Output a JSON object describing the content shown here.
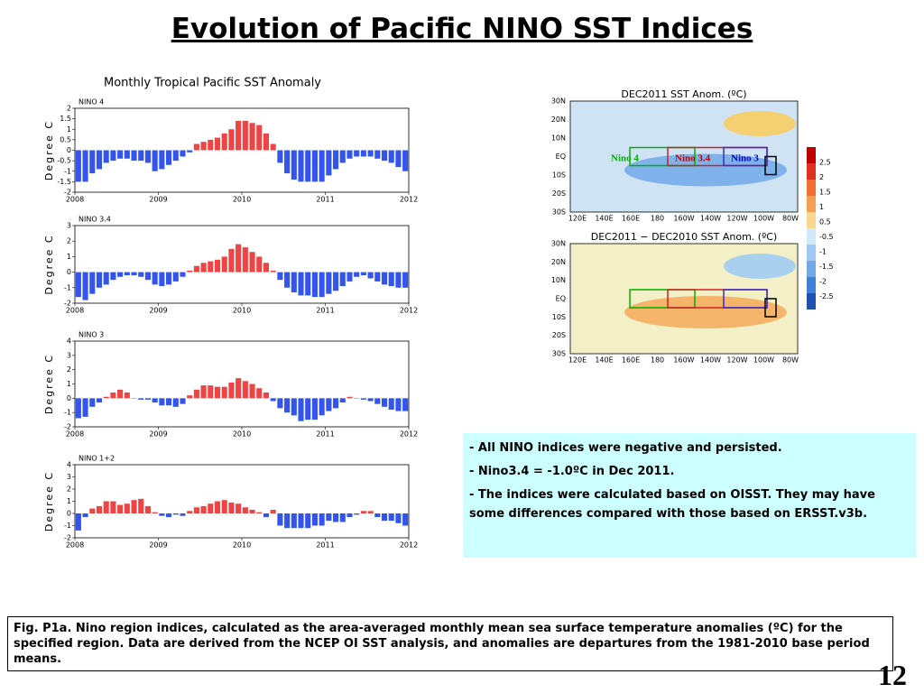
{
  "title": "Evolution of Pacific NINO SST Indices",
  "panel_title": "Monthly Tropical Pacific SST Anomaly",
  "chart_data": [
    {
      "type": "bar",
      "title": "NINO 4",
      "ylabel": "Degree C",
      "color_positive": "#ee4444",
      "color_negative": "#3355ee",
      "categories": [
        null,
        null,
        null,
        null,
        null,
        null,
        null,
        null,
        null,
        null,
        null,
        null,
        null,
        null,
        null,
        null,
        null,
        null,
        null,
        null,
        null,
        null,
        null,
        null,
        null,
        null,
        null,
        null,
        null,
        null,
        null,
        null,
        null,
        null,
        null,
        null,
        null,
        null,
        null,
        null,
        null,
        null,
        null,
        null,
        null,
        null,
        null,
        null
      ],
      "values": [
        -1.5,
        -1.5,
        -1.1,
        -0.9,
        -0.6,
        -0.5,
        -0.4,
        -0.4,
        -0.5,
        -0.5,
        -0.6,
        -1.0,
        -0.9,
        -0.7,
        -0.5,
        -0.3,
        -0.1,
        0.3,
        0.4,
        0.5,
        0.6,
        0.8,
        1.0,
        1.4,
        1.4,
        1.3,
        1.2,
        0.8,
        0.3,
        -0.6,
        -1.1,
        -1.4,
        -1.5,
        -1.5,
        -1.5,
        -1.5,
        -1.2,
        -0.9,
        -0.6,
        -0.4,
        -0.3,
        -0.3,
        -0.3,
        -0.4,
        -0.5,
        -0.6,
        -0.8,
        -1.0
      ],
      "xlim": [
        2008,
        2012
      ],
      "xticks": [
        2008,
        2009,
        2010,
        2011,
        2012
      ],
      "ylim": [
        -2,
        2
      ],
      "yticks": [
        -2,
        -1.5,
        -1,
        -0.5,
        0,
        0.5,
        1,
        1.5,
        2
      ]
    },
    {
      "type": "bar",
      "title": "NINO 3.4",
      "ylabel": "Degree C",
      "color_positive": "#ee4444",
      "color_negative": "#3355ee",
      "categories": [
        null,
        null,
        null,
        null,
        null,
        null,
        null,
        null,
        null,
        null,
        null,
        null,
        null,
        null,
        null,
        null,
        null,
        null,
        null,
        null,
        null,
        null,
        null,
        null,
        null,
        null,
        null,
        null,
        null,
        null,
        null,
        null,
        null,
        null,
        null,
        null,
        null,
        null,
        null,
        null,
        null,
        null,
        null,
        null,
        null,
        null,
        null,
        null
      ],
      "values": [
        -1.6,
        -1.8,
        -1.4,
        -1.0,
        -0.8,
        -0.5,
        -0.3,
        -0.2,
        -0.2,
        -0.3,
        -0.5,
        -0.8,
        -0.9,
        -0.8,
        -0.6,
        -0.3,
        0.1,
        0.4,
        0.6,
        0.7,
        0.8,
        1.0,
        1.5,
        1.8,
        1.6,
        1.3,
        1.0,
        0.6,
        0.1,
        -0.5,
        -1.0,
        -1.3,
        -1.5,
        -1.5,
        -1.6,
        -1.6,
        -1.4,
        -1.2,
        -0.9,
        -0.6,
        -0.3,
        -0.2,
        -0.4,
        -0.6,
        -0.8,
        -0.9,
        -1.0,
        -1.0
      ],
      "xlim": [
        2008,
        2012
      ],
      "xticks": [
        2008,
        2009,
        2010,
        2011,
        2012
      ],
      "ylim": [
        -2,
        3
      ],
      "yticks": [
        -2,
        -1,
        0,
        1,
        2,
        3
      ]
    },
    {
      "type": "bar",
      "title": "NINO 3",
      "ylabel": "Degree C",
      "color_positive": "#ee4444",
      "color_negative": "#3355ee",
      "categories": [
        null,
        null,
        null,
        null,
        null,
        null,
        null,
        null,
        null,
        null,
        null,
        null,
        null,
        null,
        null,
        null,
        null,
        null,
        null,
        null,
        null,
        null,
        null,
        null,
        null,
        null,
        null,
        null,
        null,
        null,
        null,
        null,
        null,
        null,
        null,
        null,
        null,
        null,
        null,
        null,
        null,
        null,
        null,
        null,
        null,
        null,
        null,
        null
      ],
      "values": [
        -1.4,
        -1.3,
        -0.6,
        -0.3,
        0.1,
        0.4,
        0.6,
        0.4,
        0.0,
        -0.1,
        -0.1,
        -0.3,
        -0.5,
        -0.5,
        -0.6,
        -0.4,
        0.2,
        0.6,
        0.9,
        0.9,
        0.8,
        0.8,
        1.1,
        1.4,
        1.2,
        1.0,
        0.7,
        0.4,
        -0.2,
        -0.7,
        -1.0,
        -1.2,
        -1.6,
        -1.5,
        -1.5,
        -1.2,
        -0.9,
        -0.7,
        -0.3,
        0.1,
        0.0,
        -0.1,
        -0.2,
        -0.4,
        -0.6,
        -0.8,
        -0.9,
        -0.9
      ],
      "xlim": [
        2008,
        2012
      ],
      "xticks": [
        2008,
        2009,
        2010,
        2011,
        2012
      ],
      "ylim": [
        -2,
        4
      ],
      "yticks": [
        -2,
        -1,
        0,
        1,
        2,
        3,
        4
      ]
    },
    {
      "type": "bar",
      "title": "NINO 1+2",
      "ylabel": "Degree C",
      "color_positive": "#ee4444",
      "color_negative": "#3355ee",
      "categories": [
        null,
        null,
        null,
        null,
        null,
        null,
        null,
        null,
        null,
        null,
        null,
        null,
        null,
        null,
        null,
        null,
        null,
        null,
        null,
        null,
        null,
        null,
        null,
        null,
        null,
        null,
        null,
        null,
        null,
        null,
        null,
        null,
        null,
        null,
        null,
        null,
        null,
        null,
        null,
        null,
        null,
        null,
        null,
        null,
        null,
        null,
        null,
        null
      ],
      "values": [
        -1.4,
        -0.3,
        0.4,
        0.6,
        1.0,
        1.0,
        0.7,
        0.8,
        1.1,
        1.2,
        0.6,
        0.1,
        -0.2,
        -0.3,
        -0.1,
        -0.2,
        0.2,
        0.5,
        0.6,
        0.8,
        1.0,
        1.1,
        0.9,
        0.8,
        0.5,
        0.3,
        0.1,
        -0.3,
        0.3,
        -1.0,
        -1.2,
        -1.2,
        -1.2,
        -1.2,
        -1.0,
        -1.0,
        -0.6,
        -0.7,
        -0.7,
        -0.3,
        -0.1,
        0.2,
        0.2,
        -0.3,
        -0.6,
        -0.6,
        -0.8,
        -1.0
      ],
      "xlim": [
        2008,
        2012
      ],
      "xticks": [
        2008,
        2009,
        2010,
        2011,
        2012
      ],
      "ylim": [
        -2,
        4
      ],
      "yticks": [
        -2,
        -1,
        0,
        1,
        2,
        3,
        4
      ]
    }
  ],
  "maps": [
    {
      "title": "DEC2011  SST Anom. (ºC)",
      "lat_labels": [
        "30N",
        "20N",
        "10N",
        "EQ",
        "10S",
        "20S",
        "30S"
      ],
      "lon_labels": [
        "120E",
        "140E",
        "160E",
        "180",
        "160W",
        "140W",
        "120W",
        "100W",
        "80W"
      ]
    },
    {
      "title": "DEC2011 − DEC2010 SST Anom. (ºC)",
      "lat_labels": [
        "30N",
        "20N",
        "10N",
        "EQ",
        "10S",
        "20S",
        "30S"
      ],
      "lon_labels": [
        "120E",
        "140E",
        "160E",
        "180",
        "160W",
        "140W",
        "120W",
        "100W",
        "80W"
      ]
    }
  ],
  "region_labels": [
    "Nino 4",
    "Nino 3.4",
    "Nino 3"
  ],
  "colorbar": [
    2.5,
    2,
    1.5,
    1,
    0.5,
    -0.5,
    -1,
    -1.5,
    -2,
    -2.5
  ],
  "text_box": [
    "- All NINO indices were negative and persisted.",
    "- Nino3.4 = -1.0ºC in Dec 2011.",
    "- The indices were calculated based on OISST. They may have some differences compared with those based on ERSST.v3b."
  ],
  "caption": "Fig. P1a. Nino region indices, calculated as the area-averaged monthly mean sea surface temperature anomalies (ºC) for the specified region. Data are derived from the NCEP OI SST analysis, and anomalies are departures from the 1981-2010 base period means.",
  "page_number": "12"
}
